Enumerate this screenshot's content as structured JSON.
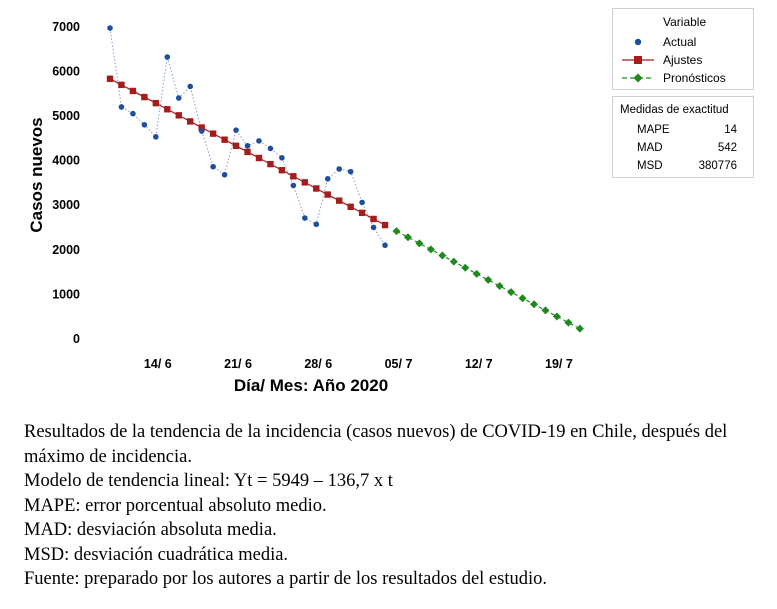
{
  "chart_data": {
    "type": "line",
    "ylabel": "Casos nuevos",
    "xlabel": "Día/ Mes: Año 2020",
    "x_tick_labels": [
      "14/ 6",
      "21/ 6",
      "28/ 6",
      "05/ 7",
      "12/ 7",
      "19/ 7"
    ],
    "y_ticks": [
      0,
      1000,
      2000,
      3000,
      4000,
      5000,
      6000,
      7000
    ],
    "ylim": [
      0,
      7000
    ],
    "series": [
      {
        "name": "Actual",
        "values": [
          6950,
          5180,
          5030,
          4780,
          4510,
          6300,
          5380,
          5640,
          4640,
          3840,
          3660,
          4660,
          4310,
          4420,
          4250,
          4040,
          3420,
          2690,
          2550,
          3570,
          3790,
          3730,
          3040,
          2480,
          2080
        ]
      },
      {
        "name": "Ajustes",
        "values": [
          5812,
          5676,
          5539,
          5402,
          5266,
          5129,
          4992,
          4856,
          4719,
          4582,
          4446,
          4309,
          4172,
          4036,
          3899,
          3762,
          3626,
          3489,
          3352,
          3216,
          3079,
          2942,
          2806,
          2669,
          2532
        ]
      },
      {
        "name": "Pronósticos",
        "start_index": 25,
        "values": [
          2396,
          2259,
          2122,
          1986,
          1849,
          1712,
          1576,
          1439,
          1302,
          1166,
          1029,
          892,
          756,
          619,
          482,
          346,
          209
        ]
      }
    ],
    "legend": {
      "title": "Variable",
      "entries": [
        "Actual",
        "Ajustes",
        "Pronósticos"
      ],
      "placement": "top-right"
    },
    "accuracy": {
      "title": "Medidas de exactitud",
      "rows": [
        {
          "label": "MAPE",
          "value": "14"
        },
        {
          "label": "MAD",
          "value": "542"
        },
        {
          "label": "MSD",
          "value": "380776"
        }
      ]
    },
    "colors": {
      "actual": "#1f4e9c",
      "ajustes": "#a61c1c",
      "pronosticos": "#1e8a1e"
    }
  },
  "caption": [
    "Resultados de la tendencia de la incidencia (casos nuevos) de COVID-19 en Chile, después del máximo de incidencia.",
    "Modelo de tendencia lineal: Yt = 5949 – 136,7 x t",
    "MAPE: error porcentual absoluto medio.",
    "MAD: desviación absoluta media.",
    "MSD: desviación cuadrática media.",
    "Fuente: preparado por los autores a partir de los resultados del estudio."
  ]
}
